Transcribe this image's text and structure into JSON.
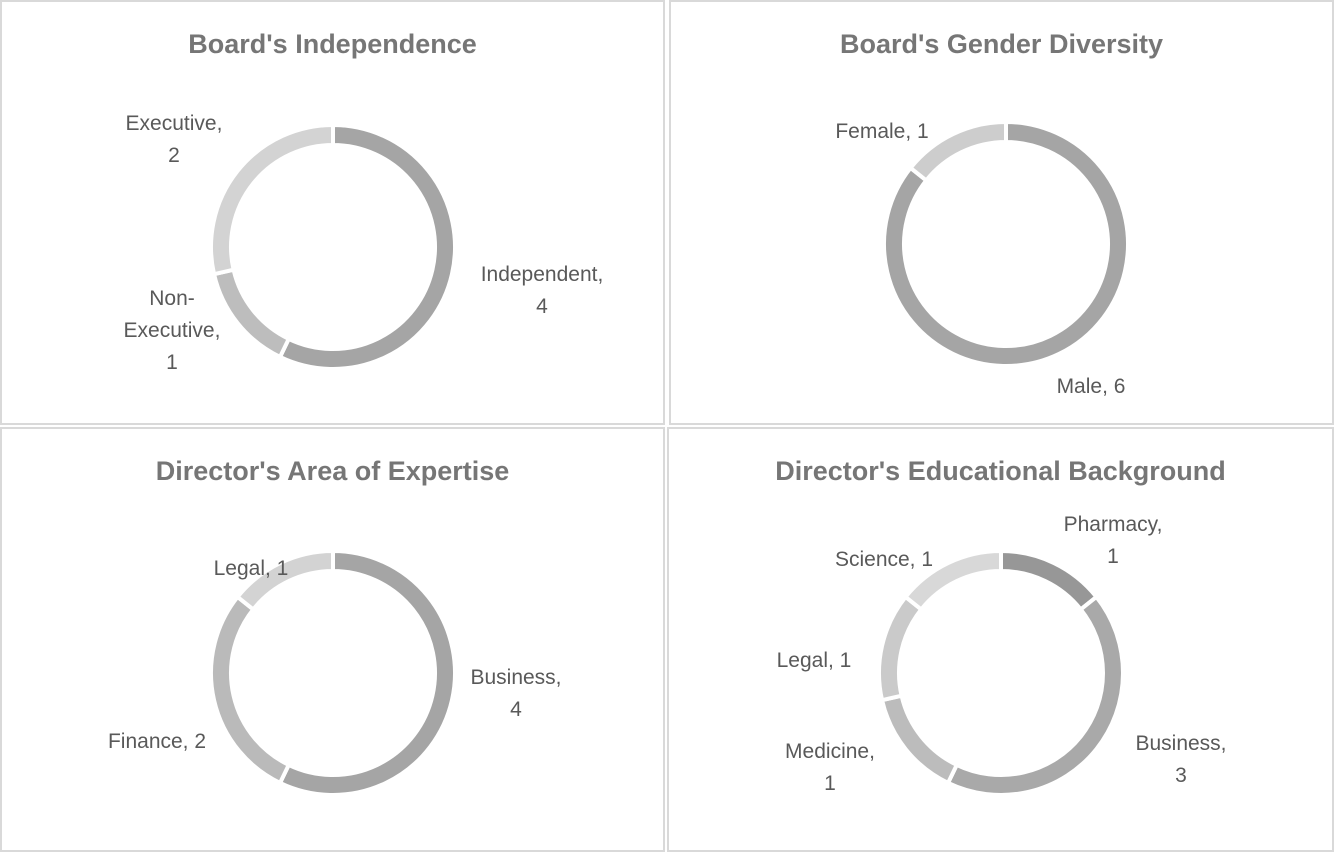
{
  "chart_data": [
    {
      "type": "doughnut",
      "title": "Board's Independence",
      "series": [
        {
          "name": "Independent",
          "value": 4,
          "color": "#a5a5a5",
          "label_lines": [
            "Independent,",
            "4"
          ]
        },
        {
          "name": "Non-Executive",
          "value": 1,
          "color": "#bdbdbd",
          "label_lines": [
            "Non-",
            "Executive,",
            "1"
          ]
        },
        {
          "name": "Executive",
          "value": 2,
          "color": "#d3d3d3",
          "label_lines": [
            "Executive,",
            "2"
          ]
        }
      ]
    },
    {
      "type": "doughnut",
      "title": "Board's Gender Diversity",
      "series": [
        {
          "name": "Male",
          "value": 6,
          "color": "#a5a5a5",
          "label_lines": [
            "Male, 6"
          ]
        },
        {
          "name": "Female",
          "value": 1,
          "color": "#cdcdcd",
          "label_lines": [
            "Female, 1"
          ]
        }
      ]
    },
    {
      "type": "doughnut",
      "title": "Director's Area of Expertise",
      "series": [
        {
          "name": "Business",
          "value": 4,
          "color": "#a5a5a5",
          "label_lines": [
            "Business,",
            "4"
          ]
        },
        {
          "name": "Finance",
          "value": 2,
          "color": "#bababa",
          "label_lines": [
            "Finance, 2"
          ]
        },
        {
          "name": "Legal",
          "value": 1,
          "color": "#d3d3d3",
          "label_lines": [
            "Legal, 1"
          ]
        }
      ]
    },
    {
      "type": "doughnut",
      "title": "Director's Educational Background",
      "series": [
        {
          "name": "Pharmacy",
          "value": 1,
          "color": "#979797",
          "label_lines": [
            "Pharmacy,",
            "1"
          ]
        },
        {
          "name": "Business",
          "value": 3,
          "color": "#a9a9a9",
          "label_lines": [
            "Business,",
            "3"
          ]
        },
        {
          "name": "Medicine",
          "value": 1,
          "color": "#bcbcbc",
          "label_lines": [
            "Medicine,",
            "1"
          ]
        },
        {
          "name": "Legal",
          "value": 1,
          "color": "#cacaca",
          "label_lines": [
            "Legal, 1"
          ]
        },
        {
          "name": "Science",
          "value": 1,
          "color": "#d8d8d8",
          "label_lines": [
            "Science, 1"
          ]
        }
      ]
    }
  ]
}
